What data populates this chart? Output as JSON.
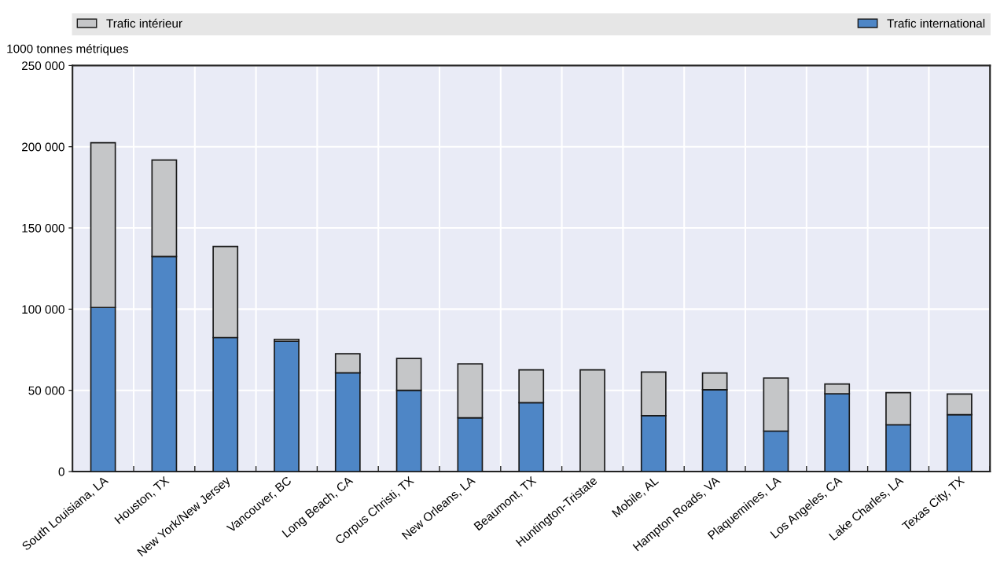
{
  "chart_data": {
    "type": "bar",
    "stacked": true,
    "ylabel": "1000 tonnes métriques",
    "categories": [
      "South Louisiana, LA",
      "Houston, TX",
      "New York/New Jersey",
      "Vancouver, BC",
      "Long Beach, CA",
      "Corpus Christi, TX",
      "New Orleans, LA",
      "Beaumont, TX",
      "Huntington-Tristate",
      "Mobile, AL",
      "Hampton Roads, VA",
      "Plaquemines, LA",
      "Los Angeles, CA",
      "Lake Charles, LA",
      "Texas City, TX"
    ],
    "series": [
      {
        "name": "Trafic international",
        "color": "#4e86c6",
        "values": [
          101000,
          132400,
          82500,
          80200,
          60800,
          50000,
          33100,
          42400,
          0,
          34400,
          50400,
          24900,
          47900,
          28800,
          35000
        ]
      },
      {
        "name": "Trafic intérieur",
        "color": "#c5c6c8",
        "values": [
          101500,
          59400,
          56100,
          1200,
          11700,
          19600,
          33200,
          20200,
          62600,
          26900,
          10300,
          32700,
          6000,
          19800,
          12700
        ]
      }
    ],
    "ylim": [
      0,
      250000
    ],
    "yticks": [
      0,
      {
        "value": 50000,
        "label": "50 000"
      },
      {
        "value": 100000,
        "label": "100 000"
      },
      {
        "value": 150000,
        "label": "150 000"
      },
      {
        "value": 200000,
        "label": "200 000"
      },
      {
        "value": 250000,
        "label": "250 000"
      }
    ],
    "grid": true,
    "legend": "top"
  }
}
